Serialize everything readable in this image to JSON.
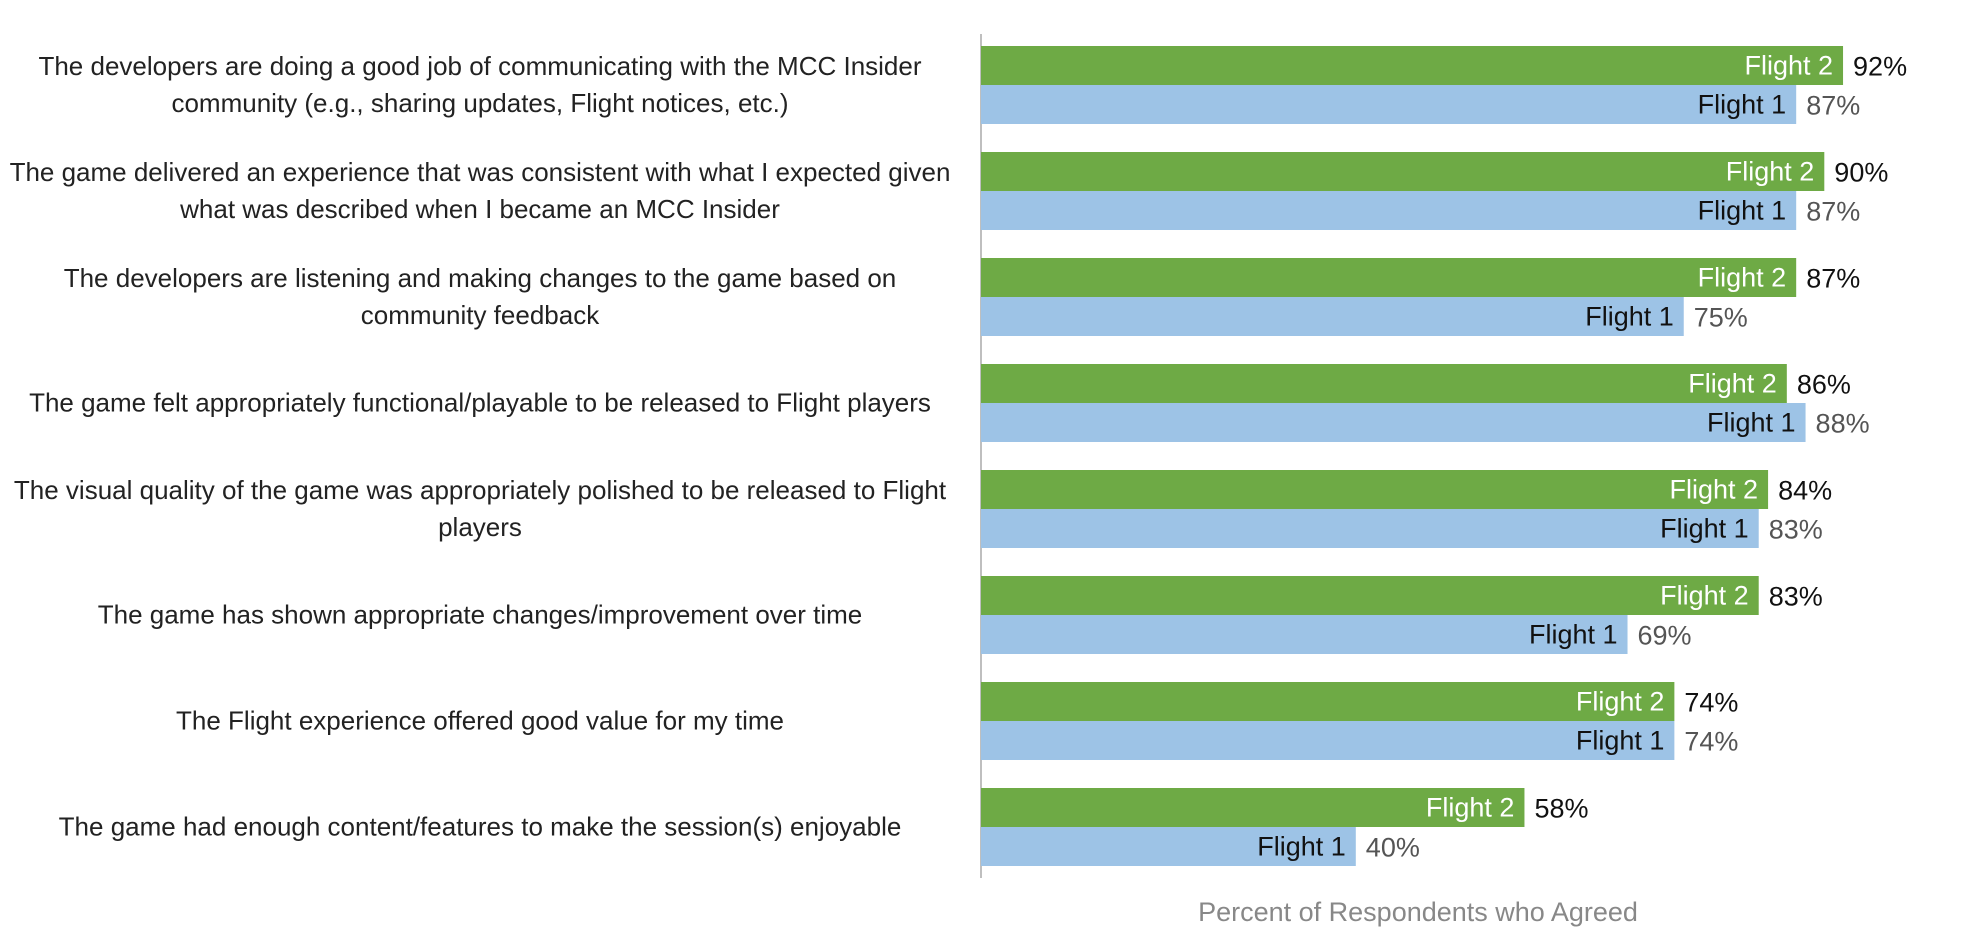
{
  "chart_data": {
    "type": "bar",
    "orientation": "horizontal",
    "categories": [
      "The developers are doing a good job of communicating with the MCC Insider community (e.g., sharing updates, Flight notices, etc.)",
      "The game delivered an experience that was consistent with what I expected given what was described when I became an MCC Insider",
      "The developers are listening and making changes to the game based on community feedback",
      "The game felt appropriately functional/playable to be released to Flight players",
      "The visual quality of the game was appropriately polished to be released to Flight players",
      "The game has shown appropriate changes/improvement over time",
      "The Flight experience offered good value for my time",
      "The game had enough content/features to make the session(s) enjoyable"
    ],
    "series": [
      {
        "name": "Flight 2",
        "color": "#6eaa45",
        "label_color": "#ffffff",
        "value_label_color": "#111111",
        "values": [
          92,
          90,
          87,
          86,
          84,
          83,
          74,
          58
        ]
      },
      {
        "name": "Flight 1",
        "color": "#9dc3e6",
        "label_color": "#111111",
        "value_label_color": "#555555",
        "values": [
          87,
          87,
          75,
          88,
          83,
          69,
          74,
          40
        ]
      }
    ],
    "value_suffix": "%",
    "xlabel": "Percent of Respondents who Agreed",
    "xlim": [
      0,
      100
    ],
    "axis_color": "#bfbfbf",
    "grid": false,
    "legend": "none"
  }
}
